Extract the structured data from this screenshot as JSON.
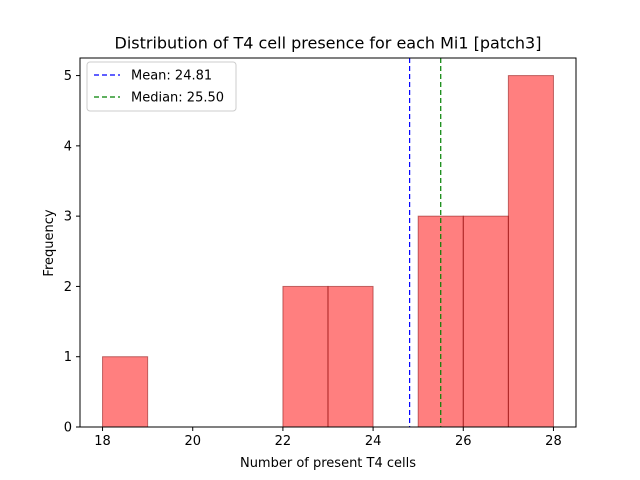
{
  "chart_data": {
    "type": "bar",
    "title": "Distribution of T4 cell presence for each Mi1 [patch3]",
    "xlabel": "Number of present T4 cells",
    "ylabel": "Frequency",
    "xlim": [
      17.5,
      28.5
    ],
    "ylim": [
      0,
      5.25
    ],
    "xticks": [
      18,
      20,
      22,
      24,
      26,
      28
    ],
    "yticks": [
      0,
      1,
      2,
      3,
      4,
      5
    ],
    "bins": [
      {
        "x0": 18,
        "x1": 19,
        "count": 1
      },
      {
        "x0": 19,
        "x1": 20,
        "count": 0
      },
      {
        "x0": 20,
        "x1": 21,
        "count": 0
      },
      {
        "x0": 21,
        "x1": 22,
        "count": 0
      },
      {
        "x0": 22,
        "x1": 23,
        "count": 2
      },
      {
        "x0": 23,
        "x1": 24,
        "count": 2
      },
      {
        "x0": 24,
        "x1": 25,
        "count": 0
      },
      {
        "x0": 25,
        "x1": 26,
        "count": 3
      },
      {
        "x0": 26,
        "x1": 27,
        "count": 3
      },
      {
        "x0": 27,
        "x1": 28,
        "count": 5
      }
    ],
    "bar_color": "#ff0000",
    "bar_opacity": 0.5,
    "bar_edge_color": "#800000",
    "reference_lines": [
      {
        "label": "Mean: 24.81",
        "value": 24.81,
        "color": "#0000ff",
        "style": "dashed"
      },
      {
        "label": "Median: 25.50",
        "value": 25.5,
        "color": "#008000",
        "style": "dashed"
      }
    ],
    "legend_position": "upper-left",
    "grid": false
  }
}
